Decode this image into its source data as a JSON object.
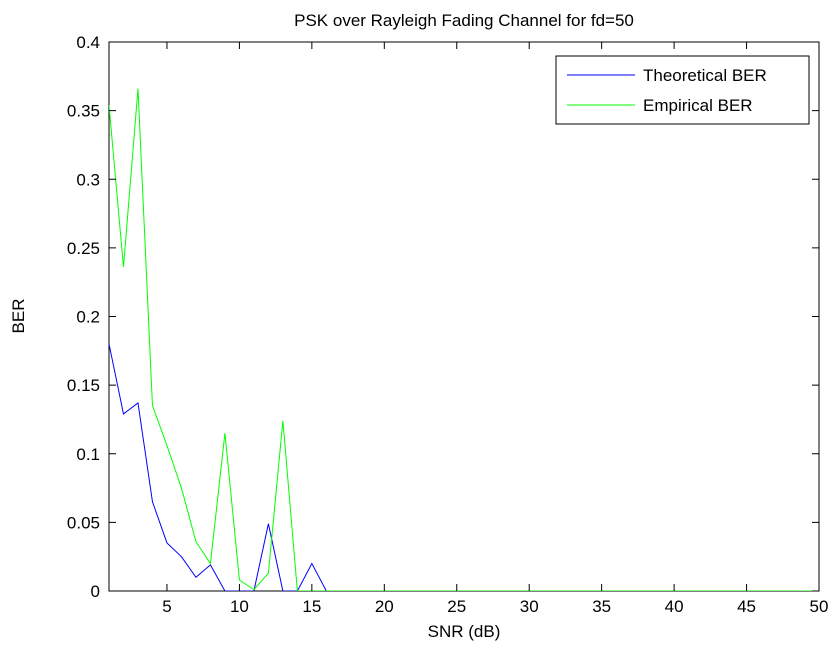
{
  "chart_data": {
    "type": "line",
    "title": "PSK over Rayleigh Fading Channel for fd=50",
    "xlabel": "SNR (dB)",
    "ylabel": "BER",
    "xlim": [
      1,
      50
    ],
    "ylim": [
      0,
      0.4
    ],
    "xticks": [
      5,
      10,
      15,
      20,
      25,
      30,
      35,
      40,
      45,
      50
    ],
    "yticks": [
      0,
      0.05,
      0.1,
      0.15,
      0.2,
      0.25,
      0.3,
      0.35,
      0.4
    ],
    "xtick_labels": [
      "5",
      "10",
      "15",
      "20",
      "25",
      "30",
      "35",
      "40",
      "45",
      "50"
    ],
    "ytick_labels": [
      "0",
      "0.05",
      "0.1",
      "0.15",
      "0.2",
      "0.25",
      "0.3",
      "0.35",
      "0.4"
    ],
    "grid": false,
    "legend_position": "top-right",
    "series": [
      {
        "name": "Theoretical BER",
        "color": "#0000ff",
        "x": [
          1,
          2,
          3,
          4,
          5,
          6,
          7,
          8,
          9,
          10,
          11,
          12,
          13,
          14,
          15,
          16,
          17,
          18,
          19,
          20,
          21,
          22,
          23,
          24,
          25,
          26,
          27,
          28,
          29,
          30,
          31,
          32,
          33,
          34,
          35,
          36,
          37,
          38,
          39,
          40,
          41,
          42,
          43,
          44,
          45,
          46,
          47,
          48,
          49,
          50
        ],
        "y": [
          0.18,
          0.129,
          0.137,
          0.065,
          0.035,
          0.025,
          0.01,
          0.019,
          0,
          0,
          0,
          0.049,
          0,
          0,
          0.02,
          0,
          0,
          0,
          0,
          0,
          0,
          0,
          0,
          0,
          0,
          0,
          0,
          0,
          0,
          0,
          0,
          0,
          0,
          0,
          0,
          0,
          0,
          0,
          0,
          0,
          0,
          0,
          0,
          0,
          0,
          0,
          0,
          0,
          0,
          0
        ]
      },
      {
        "name": "Empirical BER",
        "color": "#00ff00",
        "x": [
          1,
          2,
          3,
          4,
          5,
          6,
          7,
          8,
          9,
          10,
          11,
          12,
          13,
          14,
          15,
          16,
          17,
          18,
          19,
          20,
          21,
          22,
          23,
          24,
          25,
          26,
          27,
          28,
          29,
          30,
          31,
          32,
          33,
          34,
          35,
          36,
          37,
          38,
          39,
          40,
          41,
          42,
          43,
          44,
          45,
          46,
          47,
          48,
          49,
          50
        ],
        "y": [
          0.354,
          0.236,
          0.366,
          0.135,
          0.106,
          0.075,
          0.036,
          0.02,
          0.115,
          0.008,
          0.001,
          0.013,
          0.124,
          0,
          0,
          0,
          0,
          0,
          0,
          0,
          0,
          0,
          0,
          0,
          0,
          0,
          0,
          0,
          0,
          0,
          0,
          0,
          0,
          0,
          0,
          0,
          0,
          0,
          0,
          0,
          0,
          0,
          0,
          0,
          0,
          0,
          0,
          0,
          0,
          0
        ]
      }
    ]
  }
}
